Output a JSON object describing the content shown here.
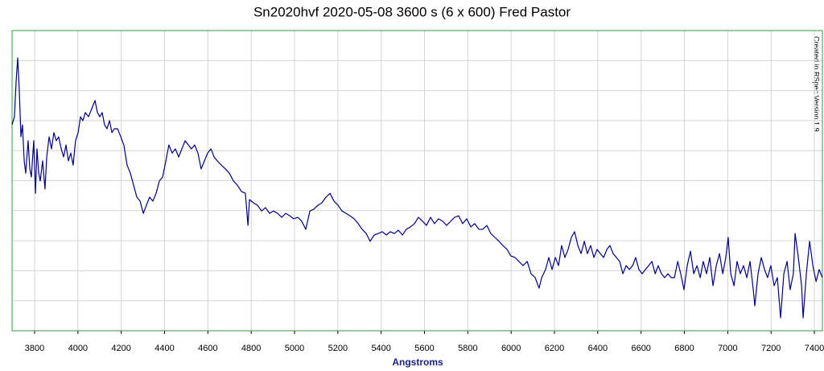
{
  "chart_data": {
    "type": "line",
    "title": "Sn2020hvf   2020-05-08   3600 s (6 x 600)   Fred Pastor",
    "xlabel": "Angstroms",
    "annotation": "Created in RSpec Version 1.9",
    "color": "#000080",
    "grid": true,
    "xlim": [
      3696,
      7437
    ],
    "xticks": [
      3800,
      4000,
      4200,
      4400,
      4600,
      4800,
      5000,
      5200,
      5400,
      5600,
      5800,
      6000,
      6200,
      6400,
      6600,
      6800,
      7000,
      7200,
      7400
    ],
    "ylim": [
      0,
      10
    ],
    "yticks": [
      1,
      2,
      3,
      4,
      5,
      6,
      7,
      8,
      9
    ],
    "x": [
      3696,
      3707,
      3715,
      3722,
      3729,
      3737,
      3744,
      3752,
      3759,
      3770,
      3778,
      3785,
      3796,
      3804,
      3811,
      3819,
      3826,
      3837,
      3848,
      3856,
      3867,
      3878,
      3889,
      3900,
      3911,
      3923,
      3934,
      3945,
      3956,
      3967,
      3978,
      3989,
      4001,
      4012,
      4023,
      4034,
      4049,
      4064,
      4079,
      4090,
      4101,
      4112,
      4123,
      4134,
      4146,
      4157,
      4168,
      4183,
      4198,
      4212,
      4227,
      4242,
      4257,
      4272,
      4287,
      4302,
      4316,
      4331,
      4346,
      4361,
      4376,
      4391,
      4406,
      4420,
      4435,
      4450,
      4465,
      4480,
      4495,
      4510,
      4524,
      4539,
      4554,
      4569,
      4584,
      4599,
      4614,
      4629,
      4643,
      4662,
      4681,
      4699,
      4718,
      4736,
      4755,
      4773,
      4785,
      4792,
      4811,
      4829,
      4848,
      4866,
      4885,
      4903,
      4922,
      4941,
      4959,
      4978,
      4996,
      5015,
      5033,
      5052,
      5071,
      5089,
      5108,
      5126,
      5145,
      5164,
      5182,
      5201,
      5219,
      5238,
      5256,
      5275,
      5294,
      5312,
      5331,
      5349,
      5368,
      5386,
      5405,
      5424,
      5442,
      5461,
      5479,
      5498,
      5516,
      5535,
      5554,
      5572,
      5591,
      5609,
      5628,
      5646,
      5665,
      5684,
      5702,
      5721,
      5739,
      5758,
      5776,
      5795,
      5814,
      5832,
      5851,
      5869,
      5888,
      5906,
      5925,
      5944,
      5962,
      5981,
      5999,
      6018,
      6036,
      6055,
      6074,
      6092,
      6111,
      6129,
      6141,
      6159,
      6174,
      6189,
      6204,
      6219,
      6233,
      6248,
      6263,
      6278,
      6293,
      6308,
      6323,
      6338,
      6352,
      6367,
      6382,
      6397,
      6412,
      6427,
      6442,
      6456,
      6471,
      6486,
      6501,
      6516,
      6531,
      6546,
      6561,
      6575,
      6590,
      6605,
      6620,
      6635,
      6650,
      6665,
      6679,
      6694,
      6709,
      6724,
      6739,
      6754,
      6769,
      6783,
      6798,
      6813,
      6828,
      6843,
      6858,
      6873,
      6887,
      6902,
      6917,
      6932,
      6947,
      6962,
      6977,
      6991,
      7002,
      7014,
      7029,
      7043,
      7058,
      7073,
      7088,
      7103,
      7118,
      7125,
      7140,
      7155,
      7170,
      7184,
      7199,
      7214,
      7229,
      7244,
      7259,
      7274,
      7288,
      7303,
      7311,
      7326,
      7341,
      7348,
      7363,
      7378,
      7393,
      7408,
      7422,
      7437
    ],
    "values": [
      6.86,
      7.13,
      8.34,
      9.09,
      8.07,
      6.46,
      6.86,
      5.66,
      5.25,
      6.33,
      5.39,
      5.12,
      6.33,
      4.58,
      6.06,
      5.25,
      4.99,
      5.66,
      4.72,
      5.79,
      6.46,
      6.06,
      6.6,
      6.33,
      6.46,
      6.06,
      5.79,
      6.19,
      5.66,
      5.92,
      5.52,
      6.33,
      6.6,
      7.13,
      7.0,
      7.27,
      7.13,
      7.4,
      7.67,
      7.27,
      7.13,
      7.27,
      6.86,
      6.73,
      7.0,
      6.6,
      6.73,
      6.73,
      6.46,
      6.19,
      5.52,
      5.25,
      4.85,
      4.45,
      4.32,
      3.91,
      4.18,
      4.45,
      4.32,
      4.58,
      4.99,
      5.12,
      5.66,
      6.19,
      5.92,
      6.06,
      5.79,
      6.06,
      6.33,
      6.19,
      6.06,
      6.19,
      5.92,
      5.39,
      5.66,
      5.92,
      6.06,
      5.79,
      5.66,
      5.52,
      5.39,
      5.25,
      4.99,
      4.85,
      4.64,
      4.58,
      3.51,
      4.37,
      4.26,
      4.18,
      3.99,
      4.1,
      3.91,
      3.99,
      3.91,
      3.78,
      3.91,
      3.83,
      3.73,
      3.78,
      3.65,
      3.38,
      3.99,
      4.05,
      4.18,
      4.26,
      4.45,
      4.58,
      4.32,
      4.18,
      3.99,
      3.91,
      3.83,
      3.73,
      3.57,
      3.38,
      3.24,
      2.98,
      3.19,
      3.24,
      3.3,
      3.19,
      3.3,
      3.24,
      3.35,
      3.19,
      3.38,
      3.46,
      3.57,
      3.78,
      3.65,
      3.51,
      3.78,
      3.57,
      3.73,
      3.65,
      3.51,
      3.65,
      3.78,
      3.83,
      3.57,
      3.73,
      3.46,
      3.57,
      3.38,
      3.38,
      3.51,
      3.24,
      3.11,
      2.98,
      2.84,
      2.71,
      2.49,
      2.44,
      2.31,
      2.17,
      2.31,
      1.9,
      1.77,
      1.42,
      1.77,
      2.04,
      2.44,
      2.04,
      2.44,
      2.17,
      2.84,
      2.44,
      2.71,
      3.11,
      3.3,
      2.84,
      2.57,
      2.98,
      2.57,
      2.84,
      2.44,
      2.71,
      2.57,
      2.44,
      2.71,
      2.84,
      2.57,
      2.44,
      2.31,
      1.9,
      2.17,
      2.04,
      2.17,
      2.44,
      2.04,
      1.9,
      2.04,
      2.17,
      2.31,
      1.9,
      2.17,
      1.9,
      1.77,
      1.9,
      1.77,
      1.77,
      2.31,
      1.9,
      1.37,
      2.17,
      2.65,
      1.9,
      2.17,
      1.77,
      2.31,
      1.9,
      2.44,
      1.5,
      2.17,
      2.57,
      1.9,
      2.44,
      3.11,
      1.9,
      1.5,
      2.31,
      1.9,
      2.17,
      1.77,
      2.31,
      1.37,
      0.83,
      1.9,
      2.44,
      2.04,
      1.77,
      2.17,
      1.5,
      1.77,
      0.43,
      1.9,
      2.31,
      1.37,
      1.9,
      3.24,
      2.44,
      1.5,
      0.43,
      1.9,
      2.98,
      2.17,
      1.64,
      2.04,
      1.77
    ]
  }
}
